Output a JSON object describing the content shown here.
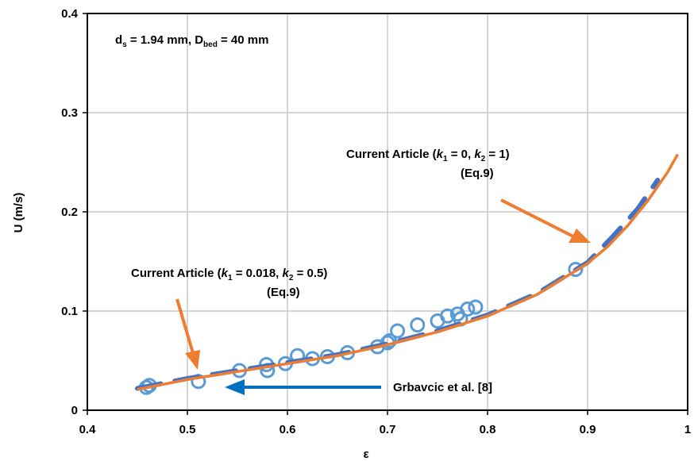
{
  "chart_data": {
    "type": "scatter",
    "xlabel": "ε",
    "ylabel": "U (m/s)",
    "xlim": [
      0.4,
      1.0
    ],
    "ylim": [
      0,
      0.4
    ],
    "x_ticks": [
      "0.4",
      "0.5",
      "0.6",
      "0.7",
      "0.8",
      "0.9",
      "1"
    ],
    "y_ticks": [
      "0",
      "0.1",
      "0.2",
      "0.3",
      "0.4"
    ],
    "grid": true,
    "colors": {
      "experimental": "#5b9bd5",
      "model_k1_0018": "#4472c4",
      "model_k1_0": "#ed7d31",
      "arrow_orange": "#ed7d31",
      "arrow_blue": "#0070c0"
    },
    "parameter_text": {
      "d": "d",
      "d_sub": "s",
      "mid": " = 1.94 mm, D",
      "D_sub": "bed",
      "end": " = 40 mm"
    },
    "series": [
      {
        "name": "Grbavcic et al. [8]",
        "marker": "circle-open",
        "points": [
          [
            0.459,
            0.023
          ],
          [
            0.462,
            0.025
          ],
          [
            0.511,
            0.029
          ],
          [
            0.552,
            0.04
          ],
          [
            0.579,
            0.046
          ],
          [
            0.58,
            0.04
          ],
          [
            0.598,
            0.047
          ],
          [
            0.61,
            0.055
          ],
          [
            0.625,
            0.052
          ],
          [
            0.64,
            0.054
          ],
          [
            0.66,
            0.058
          ],
          [
            0.69,
            0.064
          ],
          [
            0.7,
            0.068
          ],
          [
            0.702,
            0.07
          ],
          [
            0.71,
            0.08
          ],
          [
            0.73,
            0.086
          ],
          [
            0.75,
            0.09
          ],
          [
            0.76,
            0.095
          ],
          [
            0.77,
            0.097
          ],
          [
            0.773,
            0.092
          ],
          [
            0.78,
            0.102
          ],
          [
            0.788,
            0.104
          ],
          [
            0.888,
            0.142
          ]
        ]
      },
      {
        "name": "Current Article (k1 = 0.018, k2 = 0.5) (Eq.9)",
        "line": "dashed",
        "x": [
          0.45,
          0.5,
          0.55,
          0.6,
          0.65,
          0.7,
          0.75,
          0.8,
          0.85,
          0.9,
          0.925,
          0.95,
          0.97
        ],
        "y": [
          0.022,
          0.032,
          0.04,
          0.048,
          0.056,
          0.067,
          0.08,
          0.096,
          0.118,
          0.149,
          0.175,
          0.203,
          0.232
        ]
      },
      {
        "name": "Current Article (k1 = 0, k2 = 1) (Eq.9)",
        "line": "solid",
        "x": [
          0.45,
          0.5,
          0.55,
          0.6,
          0.65,
          0.7,
          0.75,
          0.8,
          0.85,
          0.9,
          0.92,
          0.94,
          0.96,
          0.98,
          0.99
        ],
        "y": [
          0.021,
          0.031,
          0.039,
          0.047,
          0.055,
          0.066,
          0.079,
          0.095,
          0.117,
          0.148,
          0.165,
          0.186,
          0.211,
          0.24,
          0.258
        ]
      }
    ],
    "annotations": [
      {
        "id": "ann-k1-0",
        "line1": {
          "a": "Current Article (",
          "k1": "k",
          "k1sub": "1",
          "b": " = 0, ",
          "k2": "k",
          "k2sub": "2",
          "c": " = 1)"
        },
        "line2": "(Eq.9)"
      },
      {
        "id": "ann-k1-0018",
        "line1": {
          "a": "Current Article (",
          "k1": "k",
          "k1sub": "1",
          "b": " = 0.018, ",
          "k2": "k",
          "k2sub": "2",
          "c": " = 0.5)"
        },
        "line2": "(Eq.9)"
      },
      {
        "id": "ann-grbavcic",
        "text": "Grbavcic et al. [8]"
      }
    ]
  }
}
